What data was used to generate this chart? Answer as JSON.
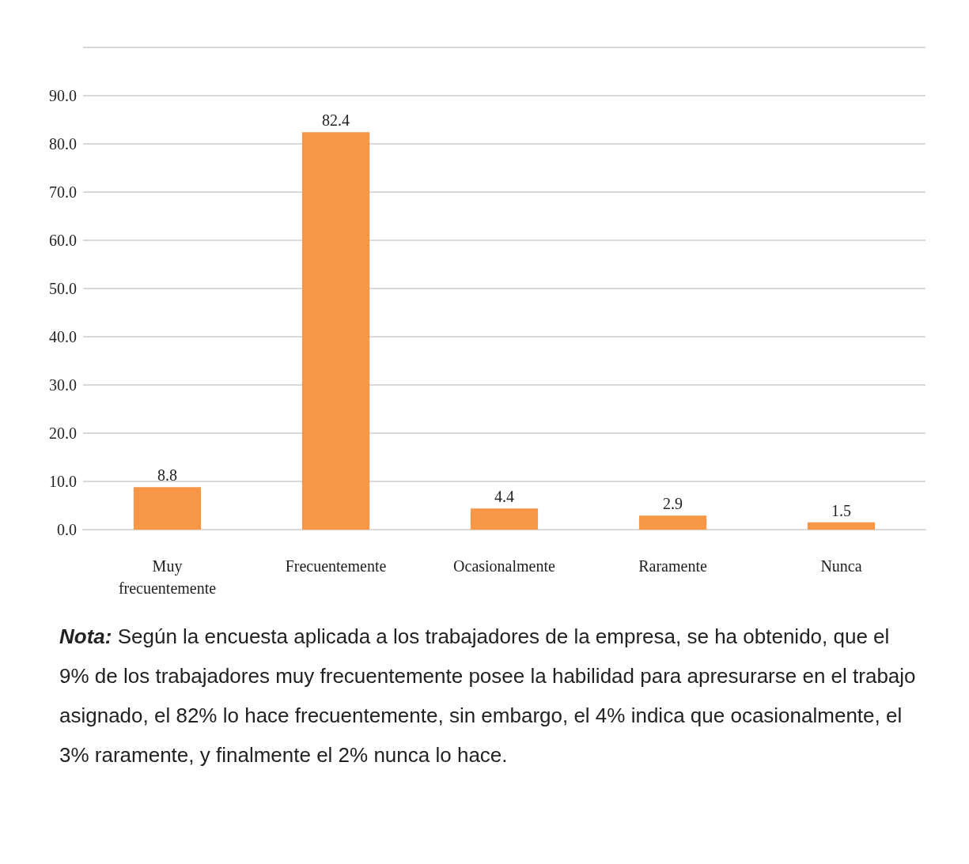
{
  "chart_data": {
    "type": "bar",
    "categories": [
      "Muy\nfrecuentemente",
      "Frecuentemente",
      "Ocasionalmente",
      "Raramente",
      "Nunca"
    ],
    "values": [
      8.8,
      82.4,
      4.4,
      2.9,
      1.5
    ],
    "color": "#f79646",
    "ylim": [
      0,
      100
    ],
    "yticks": [
      {
        "value": 0,
        "label": "0.0"
      },
      {
        "value": 10,
        "label": "10.0"
      },
      {
        "value": 20,
        "label": "20.0"
      },
      {
        "value": 30,
        "label": "30.0"
      },
      {
        "value": 40,
        "label": "40.0"
      },
      {
        "value": 50,
        "label": "50.0"
      },
      {
        "value": 60,
        "label": "60.0"
      },
      {
        "value": 70,
        "label": "70.0"
      },
      {
        "value": 80,
        "label": "80.0"
      },
      {
        "value": 90,
        "label": "90.0"
      },
      {
        "value": 100,
        "label": null
      }
    ],
    "grid": true,
    "data_labels": true,
    "annotations": [
      "Nota: Según la encuesta aplicada a los trabajadores de la empresa, se ha obtenido, que el 9% de los trabajadores muy frecuentemente posee la habilidad para apresurarse en el trabajo asignado, el 82% lo hace frecuentemente, sin embargo, el 4% indica que ocasionalmente, el 3% raramente, y finalmente el 2% nunca lo hace."
    ]
  }
}
